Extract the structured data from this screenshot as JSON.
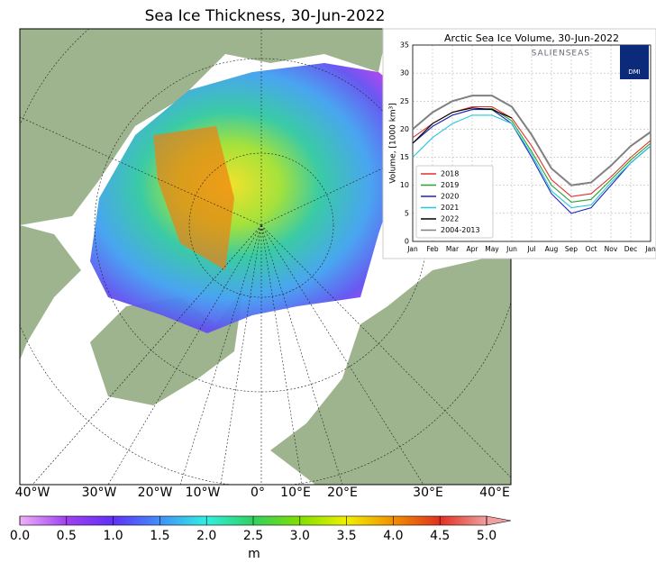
{
  "map": {
    "title": "Sea Ice Thickness, 30-Jun-2022",
    "lon_labels": [
      "40°W",
      "30°W",
      "20°W",
      "10°W",
      "0°",
      "10°E",
      "20°E",
      "30°E",
      "40°E"
    ],
    "colorbar": {
      "label": "m",
      "ticks": [
        {
          "value": 0,
          "label": "0.0"
        },
        0.5,
        {
          "value": 1,
          "label": "1.0"
        },
        1.5,
        {
          "value": 2,
          "label": "2.0"
        },
        2.5,
        {
          "value": 3,
          "label": "3.0"
        },
        3.5,
        {
          "value": 4,
          "label": "4.0"
        },
        4.5,
        {
          "value": 5,
          "label": "5.0"
        }
      ]
    }
  },
  "inset_logo": {
    "text": "SALIENSEAS",
    "badge": "DMI"
  },
  "chart_data": {
    "type": "line",
    "title": "Arctic Sea Ice Volume, 30-Jun-2022",
    "y_label": "Volume, [1000 km³]",
    "categories": [
      "Jan",
      "Feb",
      "Mar",
      "Apr",
      "May",
      "Jun",
      "Jul",
      "Aug",
      "Sep",
      "Oct",
      "Nov",
      "Dec",
      "Jan"
    ],
    "ylim": [
      0,
      35
    ],
    "yticks": [
      0,
      5,
      10,
      15,
      20,
      25,
      30,
      35
    ],
    "grid": true,
    "legend": "lower left",
    "series": [
      {
        "name": "2018",
        "color": "#e03030",
        "values": [
          18.5,
          21,
          23,
          24,
          24,
          22,
          17,
          11,
          8,
          8.5,
          11.5,
          15,
          18
        ]
      },
      {
        "name": "2019",
        "color": "#2ca02c",
        "values": [
          17.5,
          20.5,
          22.5,
          23.5,
          23.7,
          21.5,
          16,
          10,
          7,
          7.5,
          11,
          14.5,
          17.5
        ]
      },
      {
        "name": "2020",
        "color": "#2020c0",
        "values": [
          17.5,
          20.5,
          22.5,
          23.5,
          23.5,
          21,
          15,
          8.5,
          5,
          6,
          10,
          14,
          17
        ]
      },
      {
        "name": "2021",
        "color": "#20c8d8",
        "values": [
          15,
          18.5,
          21,
          22.5,
          22.5,
          21,
          15.5,
          9,
          6,
          6.5,
          10.5,
          14,
          17
        ]
      },
      {
        "name": "2022",
        "color": "#000000",
        "values": [
          17.5,
          21,
          23,
          23.8,
          23.5,
          22,
          null,
          null,
          null,
          null,
          null,
          null,
          null
        ]
      },
      {
        "name": "2004-2013",
        "color": "#808080",
        "values": [
          20,
          23,
          25,
          26,
          26,
          24,
          19,
          13,
          10,
          10.5,
          13.5,
          17,
          19.5
        ]
      }
    ]
  }
}
